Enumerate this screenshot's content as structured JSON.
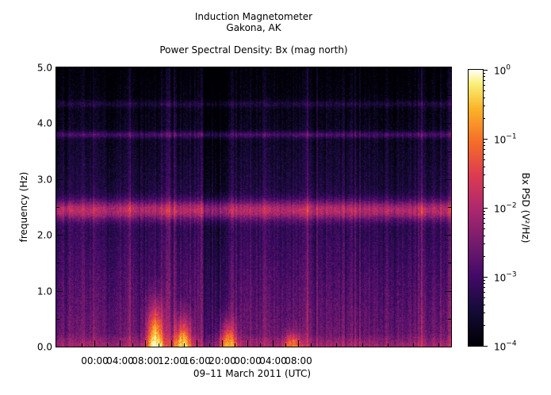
{
  "chart_data": {
    "type": "heatmap",
    "title_lines": [
      "Induction Magnetometer",
      "Gakona, AK"
    ],
    "subtitle": "Power Spectral Density: Bx (mag north)",
    "xlabel": "09–11 March 2011 (UTC)",
    "ylabel": "frequency (Hz)",
    "x_ticks": [
      "00:00",
      "04:00",
      "08:00",
      "12:00",
      "16:00",
      "20:00",
      "00:00",
      "04:00",
      "08:00"
    ],
    "x_range_hours": [
      -6,
      56
    ],
    "y_ticks": [
      "0.0",
      "1.0",
      "2.0",
      "3.0",
      "4.0",
      "5.0"
    ],
    "ylim": [
      0,
      5
    ],
    "colorbar": {
      "label": "Bx PSD (V²/Hz)",
      "scale": "log",
      "range": [
        0.0001,
        1
      ],
      "ticks": [
        {
          "base": "10",
          "exp": "0"
        },
        {
          "base": "10",
          "exp": "−1"
        },
        {
          "base": "10",
          "exp": "−2"
        },
        {
          "base": "10",
          "exp": "−3"
        },
        {
          "base": "10",
          "exp": "−4"
        }
      ]
    },
    "features": {
      "band_center_hz": 2.45,
      "band_level_log10": -1.7,
      "upper_bands_hz": [
        3.8,
        4.35
      ],
      "quiet_interval_hours": [
        17,
        21
      ],
      "low_freq_bursts": [
        {
          "center_hour": 9.5,
          "max_hz": 0.8,
          "level_log10": -0.5
        },
        {
          "center_hour": 13.8,
          "max_hz": 0.55,
          "level_log10": -0.8
        },
        {
          "center_hour": 21,
          "max_hz": 0.5,
          "level_log10": -1.2
        },
        {
          "center_hour": 31,
          "max_hz": 0.3,
          "level_log10": -1.5
        }
      ]
    }
  }
}
